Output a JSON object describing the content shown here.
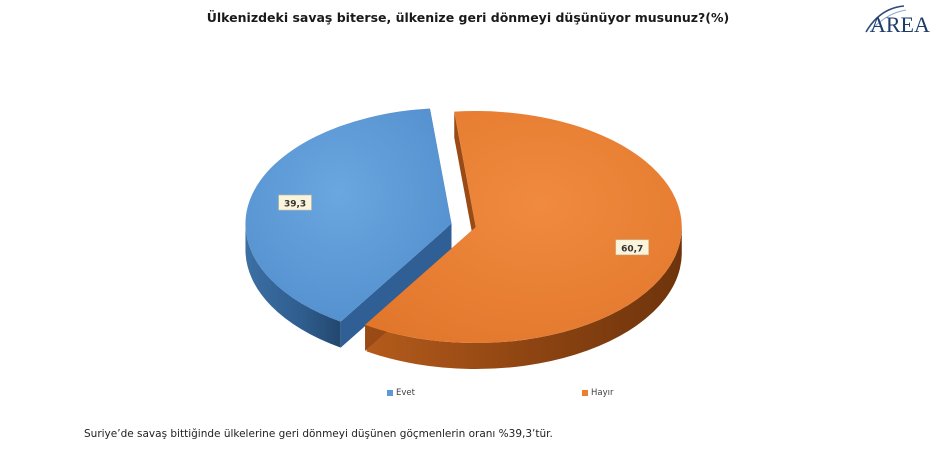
{
  "chart_data": {
    "type": "pie",
    "title": "Ülkenizdeki savaş biterse, ülkenize geri dönmeyi düşünüyor musunuz?(%)",
    "categories": [
      "Evet",
      "Hayır"
    ],
    "values": [
      39.3,
      60.7
    ],
    "value_labels": [
      "39,3",
      "60,7"
    ],
    "colors": [
      "#5b9bd5",
      "#ed7d31"
    ],
    "legend_position": "bottom"
  },
  "logo": {
    "text": "AREA"
  },
  "footnote": "Suriye’de savaş bittiğinde ülkelerine geri dönmeyi düşünen göçmenlerin oranı %39,3’tür."
}
